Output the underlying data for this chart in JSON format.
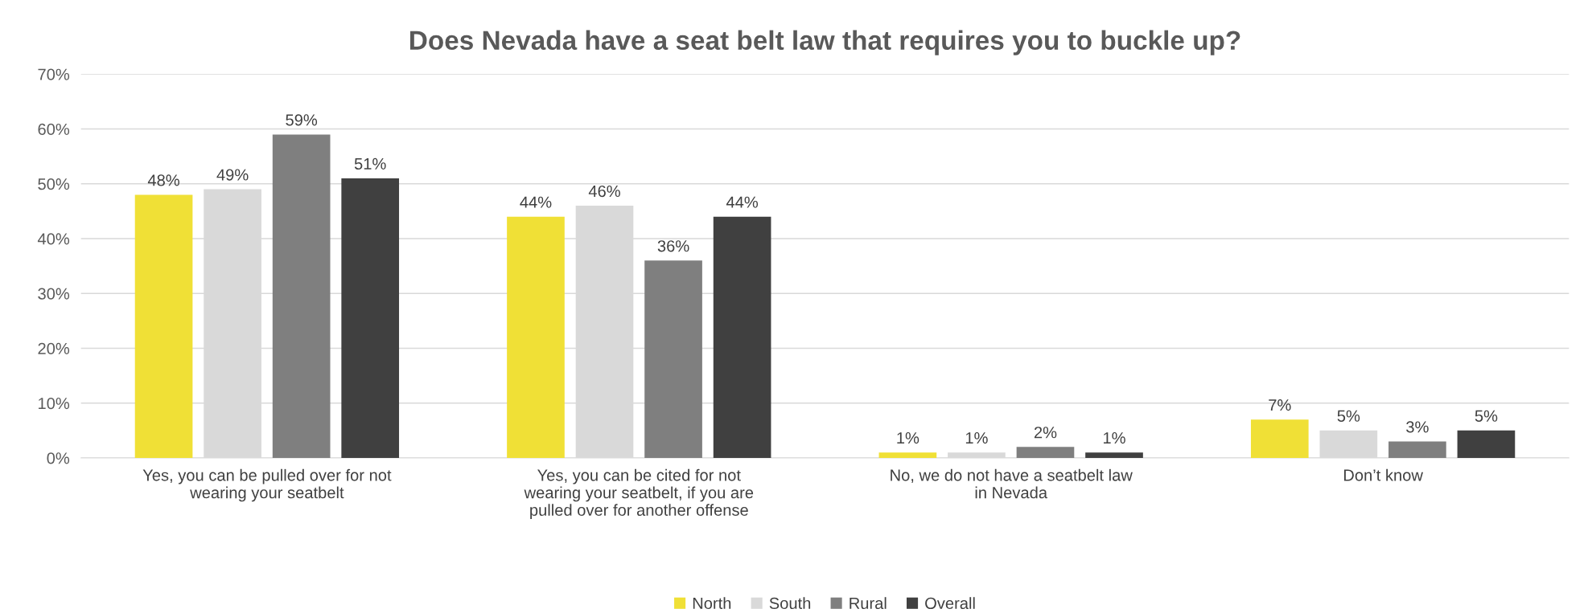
{
  "chart_data": {
    "type": "bar",
    "title": "Does Nevada have a seat belt law that requires you to buckle up?",
    "categories": [
      "Yes, you can be pulled over for not\nwearing your seatbelt",
      "Yes, you can be cited for not\nwearing your seatbelt, if you are\npulled over for another offense",
      "No, we do not have a seatbelt law\nin Nevada",
      "Don’t know"
    ],
    "series": [
      {
        "name": "North",
        "color": "#f0e036",
        "values": [
          48,
          44,
          1,
          7
        ],
        "value_labels": [
          "48%",
          "44%",
          "1%",
          "7%"
        ]
      },
      {
        "name": "South",
        "color": "#d9d9d9",
        "values": [
          49,
          46,
          1,
          5
        ],
        "value_labels": [
          "49%",
          "46%",
          "1%",
          "5%"
        ]
      },
      {
        "name": "Rural",
        "color": "#7f7f7f",
        "values": [
          59,
          36,
          2,
          3
        ],
        "value_labels": [
          "59%",
          "36%",
          "2%",
          "3%"
        ]
      },
      {
        "name": "Overall",
        "color": "#404040",
        "values": [
          51,
          44,
          1,
          5
        ],
        "value_labels": [
          "51%",
          "44%",
          "1%",
          "5%"
        ]
      }
    ],
    "ylim": [
      0,
      70
    ],
    "yticks": [
      {
        "value": 0,
        "label": "0%"
      },
      {
        "value": 10,
        "label": "10%"
      },
      {
        "value": 20,
        "label": "20%"
      },
      {
        "value": 30,
        "label": "30%"
      },
      {
        "value": 40,
        "label": "40%"
      },
      {
        "value": 50,
        "label": "50%"
      },
      {
        "value": 60,
        "label": "60%"
      },
      {
        "value": 70,
        "label": "70%"
      }
    ],
    "grid": "y",
    "legend": "bottom"
  }
}
